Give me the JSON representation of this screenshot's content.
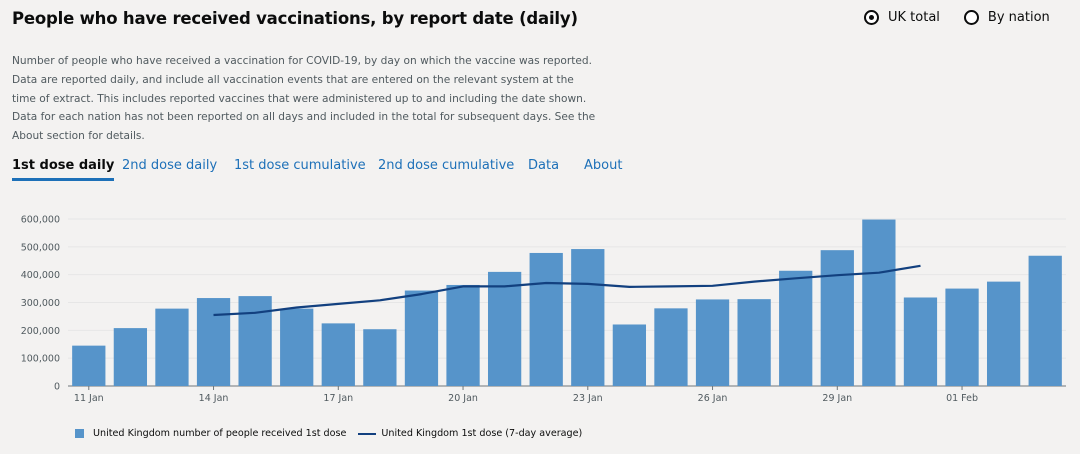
{
  "title": "People who have received vaccinations, by report date (daily)",
  "radios": [
    {
      "label": "UK total",
      "selected": true
    },
    {
      "label": "By nation",
      "selected": false
    }
  ],
  "description_lines": [
    "Number of people who have received a vaccination for COVID-19, by day on which the vaccine was reported.",
    "Data are reported daily, and include all vaccination events that are entered on the relevant system at the",
    "time of extract. This includes reported vaccines that were administered up to and including the date shown.",
    "Data for each nation has not been reported on all days and included in the total for subsequent days. See the",
    "About section for details."
  ],
  "tabs": [
    {
      "label": "1st dose daily",
      "active": true
    },
    {
      "label": "2nd dose daily",
      "active": false
    },
    {
      "label": "1st dose cumulative",
      "active": false
    },
    {
      "label": "2nd dose cumulative",
      "active": false
    },
    {
      "label": "Data",
      "active": false
    },
    {
      "label": "About",
      "active": false
    }
  ],
  "colors": {
    "bar": "#5694ca",
    "line": "#12407f",
    "grid": "#e6e6e6",
    "axis": "#6f777b",
    "accent": "#1d70b8"
  },
  "chart_data": {
    "type": "bar",
    "categories": [
      "11 Jan",
      "12 Jan",
      "13 Jan",
      "14 Jan",
      "15 Jan",
      "16 Jan",
      "17 Jan",
      "18 Jan",
      "19 Jan",
      "20 Jan",
      "21 Jan",
      "22 Jan",
      "23 Jan",
      "24 Jan",
      "25 Jan",
      "26 Jan",
      "27 Jan",
      "28 Jan",
      "29 Jan",
      "30 Jan",
      "31 Jan",
      "01 Feb",
      "02 Feb",
      "03 Feb"
    ],
    "x_tick_labels": [
      "11 Jan",
      "",
      "",
      "14 Jan",
      "",
      "",
      "17 Jan",
      "",
      "",
      "20 Jan",
      "",
      "",
      "23 Jan",
      "",
      "",
      "26 Jan",
      "",
      "",
      "29 Jan",
      "",
      "",
      "01 Feb",
      "",
      ""
    ],
    "series": [
      {
        "name": "United Kingdom number of people received 1st dose",
        "type": "bar",
        "values": [
          145000,
          208000,
          278000,
          316000,
          323000,
          278000,
          225000,
          204000,
          343000,
          363000,
          410000,
          478000,
          492000,
          221000,
          279000,
          311000,
          312000,
          414000,
          488000,
          598000,
          318000,
          350000,
          375000,
          468000
        ]
      },
      {
        "name": "United Kingdom 1st dose (7-day average)",
        "type": "line",
        "values": [
          null,
          null,
          null,
          255000,
          263000,
          282000,
          295000,
          308000,
          330000,
          358000,
          358000,
          370000,
          367000,
          356000,
          358000,
          360000,
          375000,
          387000,
          398000,
          407000,
          432000,
          null,
          null,
          null
        ]
      }
    ],
    "ylim": [
      0,
      600000
    ],
    "yticks": [
      0,
      100000,
      200000,
      300000,
      400000,
      500000,
      600000
    ],
    "ytick_labels": [
      "0",
      "100,000",
      "200,000",
      "300,000",
      "400,000",
      "500,000",
      "600,000"
    ],
    "legend_position": "bottom-left",
    "grid": true,
    "xlabel": "",
    "ylabel": ""
  }
}
